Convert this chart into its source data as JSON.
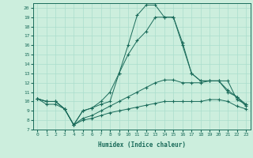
{
  "xlabel": "Humidex (Indice chaleur)",
  "bg_color": "#cceedd",
  "grid_color": "#aaddcc",
  "line_color": "#1a6b5a",
  "xlim": [
    -0.5,
    23.5
  ],
  "ylim": [
    7,
    20.5
  ],
  "yticks": [
    7,
    8,
    9,
    10,
    11,
    12,
    13,
    14,
    15,
    16,
    17,
    18,
    19,
    20
  ],
  "xticks": [
    0,
    1,
    2,
    3,
    4,
    5,
    6,
    7,
    8,
    9,
    10,
    11,
    12,
    13,
    14,
    15,
    16,
    17,
    18,
    19,
    20,
    21,
    22,
    23
  ],
  "series1_x": [
    0,
    1,
    2,
    3,
    4,
    5,
    6,
    7,
    8,
    9,
    10,
    11,
    12,
    13,
    14,
    15,
    16,
    17,
    18,
    19,
    20,
    21,
    22,
    23
  ],
  "series1_y": [
    10.3,
    10.0,
    10.0,
    9.2,
    7.5,
    8.0,
    8.2,
    8.5,
    8.8,
    9.0,
    9.2,
    9.4,
    9.6,
    9.8,
    10.0,
    10.0,
    10.0,
    10.0,
    10.0,
    10.2,
    10.2,
    10.0,
    9.5,
    9.2
  ],
  "series2_x": [
    0,
    1,
    2,
    3,
    4,
    5,
    6,
    7,
    8,
    9,
    10,
    11,
    12,
    13,
    14,
    15,
    16,
    17,
    18,
    19,
    20,
    21,
    22,
    23
  ],
  "series2_y": [
    10.3,
    10.0,
    10.0,
    9.2,
    7.5,
    8.2,
    8.5,
    9.0,
    9.5,
    10.0,
    10.5,
    11.0,
    11.5,
    12.0,
    12.3,
    12.3,
    12.0,
    12.0,
    12.0,
    12.2,
    12.2,
    11.0,
    10.5,
    9.5
  ],
  "series3_x": [
    0,
    1,
    2,
    3,
    4,
    5,
    6,
    7,
    8,
    9,
    10,
    11,
    12,
    13,
    14,
    15,
    16,
    17,
    18,
    19,
    20,
    21,
    22,
    23
  ],
  "series3_y": [
    10.3,
    10.0,
    10.0,
    9.2,
    7.5,
    9.0,
    9.3,
    10.0,
    11.0,
    13.0,
    15.0,
    16.5,
    17.5,
    19.0,
    19.0,
    19.0,
    16.3,
    13.0,
    12.2,
    12.2,
    12.2,
    12.2,
    10.2,
    9.7
  ],
  "series4_x": [
    0,
    1,
    2,
    3,
    4,
    5,
    6,
    7,
    8,
    9,
    10,
    11,
    12,
    13,
    14,
    15,
    16,
    17,
    18,
    19,
    20,
    21,
    22,
    23
  ],
  "series4_y": [
    10.3,
    9.7,
    9.7,
    9.2,
    7.5,
    9.0,
    9.3,
    9.7,
    10.0,
    13.0,
    16.0,
    19.2,
    20.3,
    20.3,
    19.0,
    19.0,
    16.0,
    13.0,
    12.2,
    12.2,
    12.2,
    11.2,
    10.5,
    9.7
  ]
}
